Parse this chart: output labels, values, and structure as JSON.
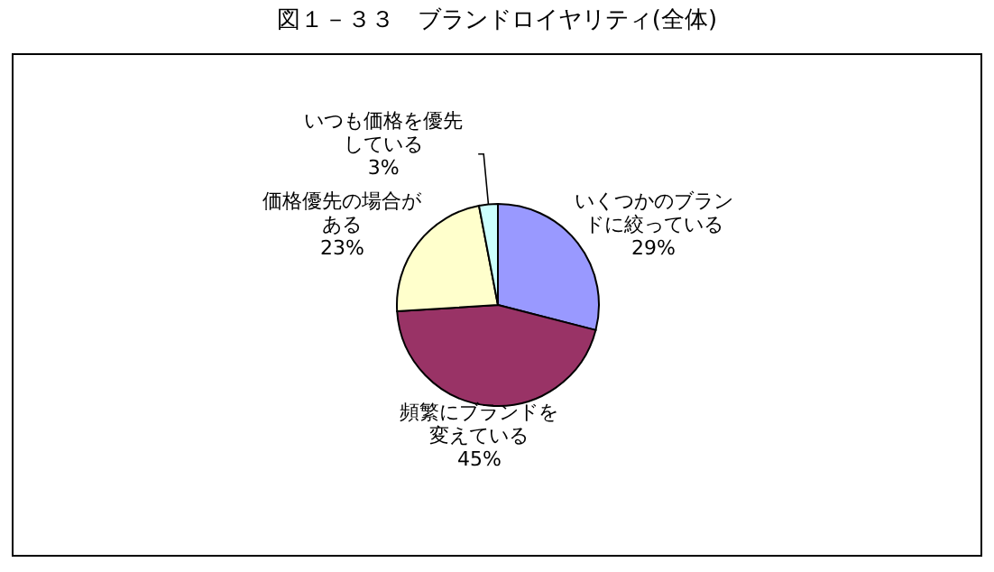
{
  "chart_data": {
    "type": "pie",
    "title": "図１－３３　ブランドロイヤリティ(全体)",
    "categories": [
      "いくつかのブランドに絞っている",
      "頻繁にブランドを変えている",
      "価格優先の場合がある",
      "いつも価格を優先している"
    ],
    "values": [
      29,
      45,
      23,
      3
    ],
    "colors": [
      "#9999ff",
      "#993366",
      "#ffffcc",
      "#ccffff"
    ],
    "value_labels": [
      "29%",
      "45%",
      "23%",
      "3%"
    ]
  }
}
